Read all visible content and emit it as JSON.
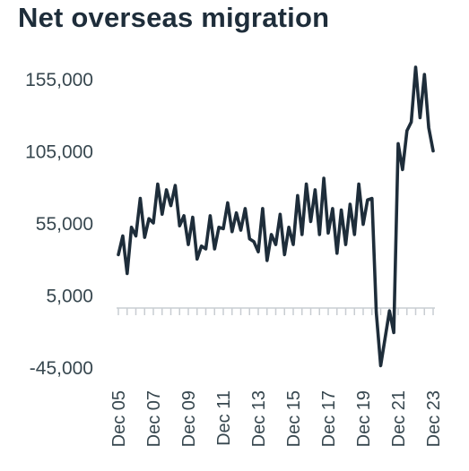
{
  "chart_data": {
    "type": "line",
    "title": "Net overseas migration",
    "xlabel": "",
    "ylabel": "",
    "ylim": [
      -45000,
      155000
    ],
    "y_ticks": [
      {
        "value": 155000,
        "label": "155,000"
      },
      {
        "value": 105000,
        "label": "105,000"
      },
      {
        "value": 55000,
        "label": "55,000"
      },
      {
        "value": 5000,
        "label": "5,000"
      },
      {
        "value": -45000,
        "label": "-45,000"
      }
    ],
    "x_ticks": [
      {
        "label": "Dec 05",
        "x": "Dec 05"
      },
      {
        "label": "Dec 07",
        "x": "Dec 07"
      },
      {
        "label": "Dec 09",
        "x": "Dec 09"
      },
      {
        "label": "Dec 11",
        "x": "Dec 11"
      },
      {
        "label": "Dec 13",
        "x": "Dec 13"
      },
      {
        "label": "Dec 15",
        "x": "Dec 15"
      },
      {
        "label": "Dec 17",
        "x": "Dec 17"
      },
      {
        "label": "Dec 19",
        "x": "Dec 19"
      },
      {
        "label": "Dec 21",
        "x": "Dec 21"
      },
      {
        "label": "Dec 23",
        "x": "Dec 23"
      }
    ],
    "line_color": "#1e2d3a",
    "series": [
      {
        "x": [
          "Dec 05",
          "Mar 06",
          "Jun 06",
          "Sep 06",
          "Dec 06",
          "Mar 07",
          "Jun 07",
          "Sep 07",
          "Dec 07",
          "Mar 08",
          "Jun 08",
          "Sep 08",
          "Dec 08",
          "Mar 09",
          "Jun 09",
          "Sep 09",
          "Dec 09",
          "Mar 10",
          "Jun 10",
          "Sep 10",
          "Dec 10",
          "Mar 11",
          "Jun 11",
          "Sep 11",
          "Dec 11",
          "Mar 12",
          "Jun 12",
          "Sep 12",
          "Dec 12",
          "Mar 13",
          "Jun 13",
          "Sep 13",
          "Dec 13",
          "Mar 14",
          "Jun 14",
          "Sep 14",
          "Dec 14",
          "Mar 15",
          "Jun 15",
          "Sep 15",
          "Dec 15",
          "Mar 16",
          "Jun 16",
          "Sep 16",
          "Dec 16",
          "Mar 17",
          "Jun 17",
          "Sep 17",
          "Dec 17",
          "Mar 18",
          "Jun 18",
          "Sep 18",
          "Dec 18",
          "Mar 19",
          "Jun 19",
          "Sep 19",
          "Dec 19",
          "Mar 20",
          "Jun 20",
          "Sep 20",
          "Dec 20",
          "Mar 21",
          "Jun 21",
          "Sep 21",
          "Dec 21",
          "Mar 22",
          "Jun 22",
          "Sep 22",
          "Dec 22",
          "Mar 23",
          "Jun 23",
          "Sep 23",
          "Dec 23"
        ],
        "values": [
          33000,
          46000,
          20000,
          52000,
          46000,
          72000,
          45000,
          58000,
          55000,
          82000,
          61000,
          78000,
          67000,
          81000,
          53000,
          60000,
          40000,
          59000,
          30000,
          39000,
          37000,
          60000,
          37000,
          52000,
          51000,
          69000,
          49000,
          62000,
          50000,
          65000,
          44000,
          42000,
          35000,
          65000,
          29000,
          47000,
          40000,
          61000,
          33000,
          52000,
          40000,
          74000,
          47000,
          82000,
          56000,
          78000,
          47000,
          86000,
          48000,
          65000,
          34000,
          64000,
          40000,
          68000,
          47000,
          82000,
          54000,
          71000,
          72000,
          -7000,
          -44000,
          -25000,
          -6000,
          -21000,
          110000,
          92000,
          119000,
          125000,
          163000,
          128000,
          158000,
          121000,
          105000
        ]
      }
    ]
  }
}
